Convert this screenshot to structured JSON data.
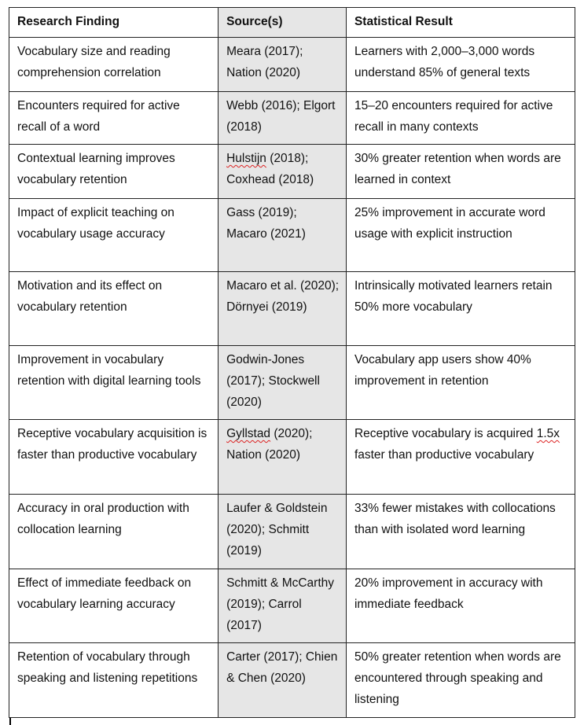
{
  "headers": [
    "Research Finding",
    "Source(s)",
    "Statistical Result"
  ],
  "rows": [
    {
      "finding": "Vocabulary size and reading comprehension correlation",
      "source_flag": "",
      "source": "Meara (2017); Nation (2020)",
      "result_flag": "",
      "result": "Learners with 2,000–3,000 words understand 85% of general texts"
    },
    {
      "finding": "Encounters required for active recall of a word",
      "source_flag": "",
      "source": "Webb (2016); Elgort (2018)",
      "result_flag": "",
      "result": "15–20 encounters required for active recall in many contexts"
    },
    {
      "finding": "Contextual learning improves vocabulary retention",
      "source_flag": "Hulstijn",
      "source": " (2018); Coxhead (2018)",
      "result_flag": "",
      "result": "30% greater retention when words are learned in context"
    },
    {
      "finding": "Impact of explicit teaching on vocabulary usage accuracy",
      "source_flag": "",
      "source": "Gass (2019); Macaro (2021)",
      "result_flag": "",
      "result": "25% improvement in accurate word usage with explicit instruction"
    },
    {
      "finding": "Motivation and its effect on vocabulary retention",
      "source_flag": "",
      "source": "Macaro et al. (2020); Dörnyei (2019)",
      "result_flag": "",
      "result": "Intrinsically motivated learners retain 50% more vocabulary"
    },
    {
      "finding": "Improvement in vocabulary retention with digital learning tools",
      "source_flag": "",
      "source": "Godwin-Jones (2017); Stockwell (2020)",
      "result_flag": "",
      "result": "Vocabulary app users show 40% improvement in retention"
    },
    {
      "finding": "Receptive vocabulary acquisition is faster than productive vocabulary",
      "source_flag": "Gyllstad",
      "source": " (2020); Nation (2020)",
      "result_pre": "Receptive vocabulary is acquired ",
      "result_flag": "1.5x",
      "result": " faster than productive vocabulary"
    },
    {
      "finding": "Accuracy in oral production with collocation learning",
      "source_flag": "",
      "source": "Laufer & Goldstein (2020); Schmitt (2019)",
      "result_flag": "",
      "result": "33% fewer mistakes with collocations than with isolated word learning"
    },
    {
      "finding": "Effect of immediate feedback on vocabulary learning accuracy",
      "source_flag": "",
      "source": "Schmitt & McCarthy (2019); Carrol (2017)",
      "result_flag": "",
      "result": "20% improvement in accuracy with immediate feedback"
    },
    {
      "finding": "Retention of vocabulary through speaking and listening repetitions",
      "source_flag": "",
      "source": "Carter (2017); Chien & Chen (2020)",
      "result_flag": "",
      "result": "50% greater retention when words are encountered through speaking and listening"
    }
  ]
}
